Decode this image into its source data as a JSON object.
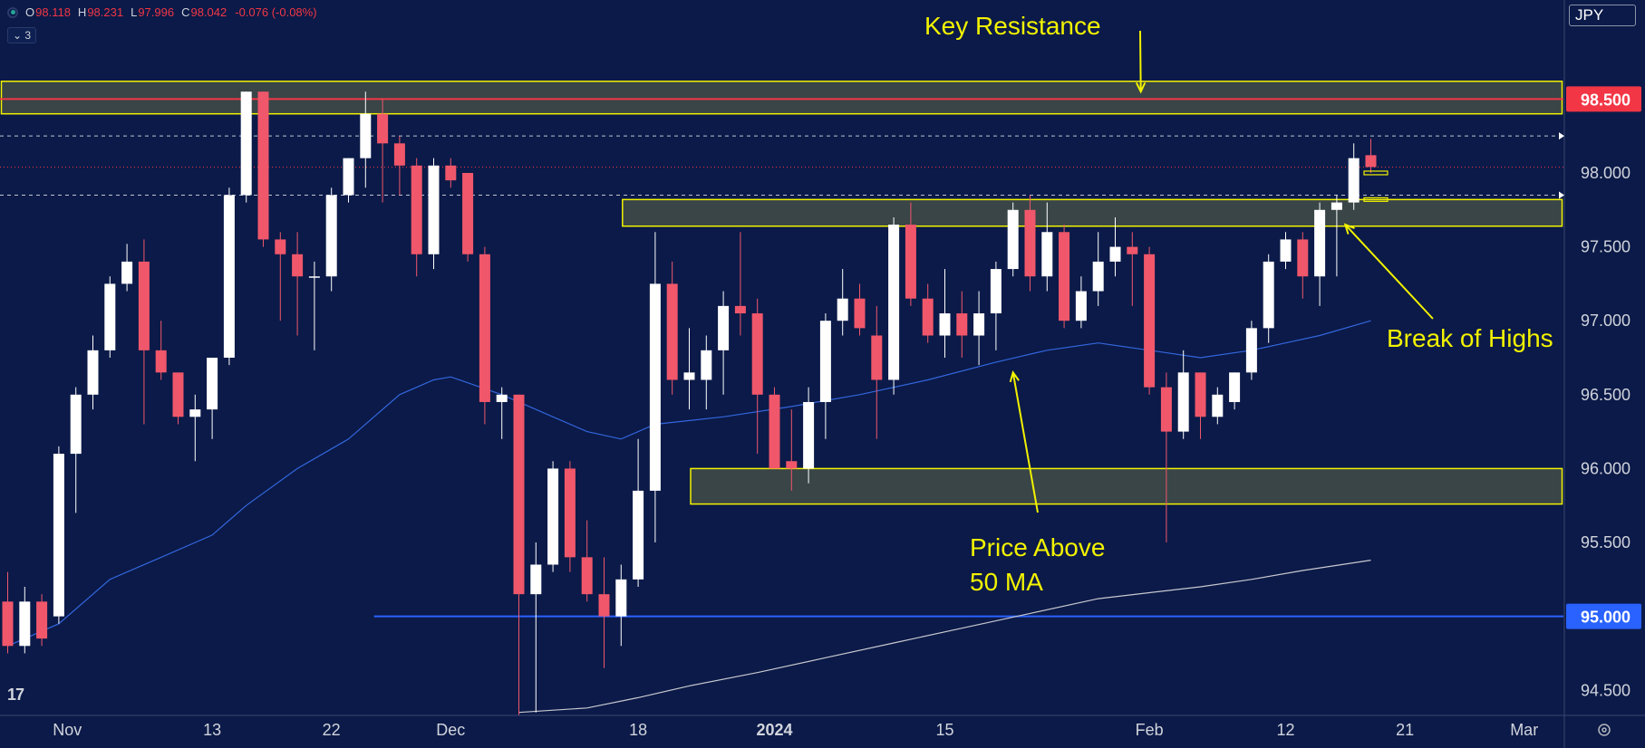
{
  "header": {
    "ohlc": [
      {
        "key": "O",
        "value": "98.118"
      },
      {
        "key": "H",
        "value": "98.231"
      },
      {
        "key": "L",
        "value": "97.996"
      },
      {
        "key": "C",
        "value": "98.042"
      }
    ],
    "change": "-0.076 (-0.08%)",
    "indicator_count": "3"
  },
  "currency_label": "JPY",
  "logo_text": "17",
  "colors": {
    "background": "#0b1a48",
    "bull_candle": "#ffffff",
    "bear_candle": "#f0576b",
    "zone_fill": "#3e4a47",
    "zone_border": "#f2f200",
    "annotation": "#f2f200",
    "ma50": "#3366dd",
    "ma200": "#c8c8d0",
    "support_line": "#2962ff",
    "resistance_line": "#f23645"
  },
  "chart_data": {
    "type": "candlestick",
    "y_axis": {
      "ylim": [
        94.33,
        99.17
      ],
      "ticks": [
        "94.500",
        "95.000",
        "95.500",
        "96.000",
        "96.500",
        "97.000",
        "97.500",
        "98.000",
        "98.500"
      ],
      "tick_values": [
        94.5,
        95.0,
        95.5,
        96.0,
        96.5,
        97.0,
        97.5,
        98.0,
        98.5
      ],
      "highlighted_labels": [
        {
          "text": "98.500",
          "value": 98.5,
          "color": "#f23645"
        },
        {
          "text": "95.000",
          "value": 95.0,
          "color": "#2962ff"
        }
      ]
    },
    "x_axis": {
      "ticks": [
        {
          "label": "Nov",
          "index": 3.5
        },
        {
          "label": "13",
          "index": 12
        },
        {
          "label": "22",
          "index": 19
        },
        {
          "label": "Dec",
          "index": 26
        },
        {
          "label": "18",
          "index": 37
        },
        {
          "label": "2024",
          "index": 45
        },
        {
          "label": "15",
          "index": 55
        },
        {
          "label": "Feb",
          "index": 67
        },
        {
          "label": "12",
          "index": 75
        },
        {
          "label": "21",
          "index": 82
        },
        {
          "label": "Mar",
          "index": 89
        }
      ]
    },
    "candles": [
      {
        "o": 95.1,
        "h": 95.3,
        "l": 94.75,
        "c": 94.8
      },
      {
        "o": 94.8,
        "h": 95.2,
        "l": 94.75,
        "c": 95.1
      },
      {
        "o": 95.1,
        "h": 95.15,
        "l": 94.8,
        "c": 94.85
      },
      {
        "o": 95.0,
        "h": 96.15,
        "l": 94.95,
        "c": 96.1
      },
      {
        "o": 96.1,
        "h": 96.55,
        "l": 95.7,
        "c": 96.5
      },
      {
        "o": 96.5,
        "h": 96.9,
        "l": 96.4,
        "c": 96.8
      },
      {
        "o": 96.8,
        "h": 97.3,
        "l": 96.75,
        "c": 97.25
      },
      {
        "o": 97.25,
        "h": 97.52,
        "l": 97.2,
        "c": 97.4
      },
      {
        "o": 97.4,
        "h": 97.55,
        "l": 96.3,
        "c": 96.8
      },
      {
        "o": 96.8,
        "h": 97.0,
        "l": 96.6,
        "c": 96.65
      },
      {
        "o": 96.65,
        "h": 96.65,
        "l": 96.3,
        "c": 96.35
      },
      {
        "o": 96.35,
        "h": 96.5,
        "l": 96.05,
        "c": 96.4
      },
      {
        "o": 96.4,
        "h": 96.75,
        "l": 96.2,
        "c": 96.75
      },
      {
        "o": 96.75,
        "h": 97.9,
        "l": 96.7,
        "c": 97.85
      },
      {
        "o": 97.85,
        "h": 98.55,
        "l": 97.8,
        "c": 98.55
      },
      {
        "o": 98.55,
        "h": 98.55,
        "l": 97.5,
        "c": 97.55
      },
      {
        "o": 97.55,
        "h": 97.6,
        "l": 97.0,
        "c": 97.45
      },
      {
        "o": 97.45,
        "h": 97.6,
        "l": 96.9,
        "c": 97.3
      },
      {
        "o": 97.3,
        "h": 97.4,
        "l": 96.8,
        "c": 97.3
      },
      {
        "o": 97.3,
        "h": 97.9,
        "l": 97.2,
        "c": 97.85
      },
      {
        "o": 97.85,
        "h": 98.1,
        "l": 97.8,
        "c": 98.1
      },
      {
        "o": 98.1,
        "h": 98.55,
        "l": 97.9,
        "c": 98.4
      },
      {
        "o": 98.4,
        "h": 98.5,
        "l": 97.8,
        "c": 98.2
      },
      {
        "o": 98.2,
        "h": 98.25,
        "l": 97.85,
        "c": 98.05
      },
      {
        "o": 98.05,
        "h": 98.1,
        "l": 97.3,
        "c": 97.45
      },
      {
        "o": 97.45,
        "h": 98.1,
        "l": 97.35,
        "c": 98.05
      },
      {
        "o": 98.05,
        "h": 98.1,
        "l": 97.9,
        "c": 97.95
      },
      {
        "o": 98.0,
        "h": 98.0,
        "l": 97.4,
        "c": 97.45
      },
      {
        "o": 97.45,
        "h": 97.5,
        "l": 96.3,
        "c": 96.45
      },
      {
        "o": 96.45,
        "h": 96.55,
        "l": 96.2,
        "c": 96.5
      },
      {
        "o": 96.5,
        "h": 96.5,
        "l": 94.3,
        "c": 95.15
      },
      {
        "o": 95.15,
        "h": 95.5,
        "l": 94.35,
        "c": 95.35
      },
      {
        "o": 95.35,
        "h": 96.05,
        "l": 95.3,
        "c": 96.0
      },
      {
        "o": 96.0,
        "h": 96.05,
        "l": 95.3,
        "c": 95.4
      },
      {
        "o": 95.4,
        "h": 95.65,
        "l": 95.1,
        "c": 95.15
      },
      {
        "o": 95.15,
        "h": 95.4,
        "l": 94.65,
        "c": 95.0
      },
      {
        "o": 95.0,
        "h": 95.35,
        "l": 94.8,
        "c": 95.25
      },
      {
        "o": 95.25,
        "h": 96.2,
        "l": 95.2,
        "c": 95.85
      },
      {
        "o": 95.85,
        "h": 97.6,
        "l": 95.5,
        "c": 97.25
      },
      {
        "o": 97.25,
        "h": 97.4,
        "l": 96.5,
        "c": 96.6
      },
      {
        "o": 96.6,
        "h": 96.95,
        "l": 96.4,
        "c": 96.65
      },
      {
        "o": 96.6,
        "h": 96.9,
        "l": 96.4,
        "c": 96.8
      },
      {
        "o": 96.8,
        "h": 97.2,
        "l": 96.5,
        "c": 97.1
      },
      {
        "o": 97.1,
        "h": 97.6,
        "l": 96.9,
        "c": 97.05
      },
      {
        "o": 97.05,
        "h": 97.15,
        "l": 96.1,
        "c": 96.5
      },
      {
        "o": 96.5,
        "h": 96.55,
        "l": 96.0,
        "c": 96.0
      },
      {
        "o": 96.05,
        "h": 96.4,
        "l": 95.85,
        "c": 96.0
      },
      {
        "o": 96.0,
        "h": 96.55,
        "l": 95.9,
        "c": 96.45
      },
      {
        "o": 96.45,
        "h": 97.05,
        "l": 96.2,
        "c": 97.0
      },
      {
        "o": 97.0,
        "h": 97.35,
        "l": 96.9,
        "c": 97.15
      },
      {
        "o": 97.15,
        "h": 97.25,
        "l": 96.9,
        "c": 96.95
      },
      {
        "o": 96.9,
        "h": 97.1,
        "l": 96.2,
        "c": 96.6
      },
      {
        "o": 96.6,
        "h": 97.7,
        "l": 96.5,
        "c": 97.65
      },
      {
        "o": 97.65,
        "h": 97.8,
        "l": 97.1,
        "c": 97.15
      },
      {
        "o": 97.15,
        "h": 97.25,
        "l": 96.85,
        "c": 96.9
      },
      {
        "o": 96.9,
        "h": 97.35,
        "l": 96.75,
        "c": 97.05
      },
      {
        "o": 97.05,
        "h": 97.2,
        "l": 96.75,
        "c": 96.9
      },
      {
        "o": 96.9,
        "h": 97.2,
        "l": 96.7,
        "c": 97.05
      },
      {
        "o": 97.05,
        "h": 97.4,
        "l": 96.8,
        "c": 97.35
      },
      {
        "o": 97.35,
        "h": 97.8,
        "l": 97.3,
        "c": 97.75
      },
      {
        "o": 97.75,
        "h": 97.85,
        "l": 97.2,
        "c": 97.3
      },
      {
        "o": 97.3,
        "h": 97.8,
        "l": 97.2,
        "c": 97.6
      },
      {
        "o": 97.6,
        "h": 97.65,
        "l": 96.95,
        "c": 97.0
      },
      {
        "o": 97.0,
        "h": 97.3,
        "l": 96.95,
        "c": 97.2
      },
      {
        "o": 97.2,
        "h": 97.6,
        "l": 97.1,
        "c": 97.4
      },
      {
        "o": 97.4,
        "h": 97.7,
        "l": 97.3,
        "c": 97.5
      },
      {
        "o": 97.5,
        "h": 97.6,
        "l": 97.1,
        "c": 97.45
      },
      {
        "o": 97.45,
        "h": 97.5,
        "l": 96.5,
        "c": 96.55
      },
      {
        "o": 96.55,
        "h": 96.65,
        "l": 95.5,
        "c": 96.25
      },
      {
        "o": 96.25,
        "h": 96.8,
        "l": 96.2,
        "c": 96.65
      },
      {
        "o": 96.65,
        "h": 96.65,
        "l": 96.2,
        "c": 96.35
      },
      {
        "o": 96.35,
        "h": 96.55,
        "l": 96.3,
        "c": 96.5
      },
      {
        "o": 96.45,
        "h": 96.65,
        "l": 96.4,
        "c": 96.65
      },
      {
        "o": 96.65,
        "h": 97.0,
        "l": 96.6,
        "c": 96.95
      },
      {
        "o": 96.95,
        "h": 97.45,
        "l": 96.85,
        "c": 97.4
      },
      {
        "o": 97.4,
        "h": 97.6,
        "l": 97.35,
        "c": 97.55
      },
      {
        "o": 97.55,
        "h": 97.6,
        "l": 97.15,
        "c": 97.3
      },
      {
        "o": 97.3,
        "h": 97.8,
        "l": 97.1,
        "c": 97.75
      },
      {
        "o": 97.75,
        "h": 97.85,
        "l": 97.3,
        "c": 97.8
      },
      {
        "o": 97.8,
        "h": 98.2,
        "l": 97.75,
        "c": 98.1
      },
      {
        "o": 98.12,
        "h": 98.23,
        "l": 98.0,
        "c": 98.04
      }
    ],
    "moving_averages": [
      {
        "period": "50 MA",
        "color": "#3366dd",
        "points": [
          [
            0,
            94.8
          ],
          [
            3,
            94.95
          ],
          [
            6,
            95.25
          ],
          [
            9,
            95.4
          ],
          [
            12,
            95.55
          ],
          [
            14,
            95.75
          ],
          [
            17,
            96.0
          ],
          [
            20,
            96.2
          ],
          [
            23,
            96.5
          ],
          [
            25,
            96.6
          ],
          [
            26,
            96.62
          ],
          [
            29,
            96.5
          ],
          [
            32,
            96.35
          ],
          [
            34,
            96.25
          ],
          [
            36,
            96.2
          ],
          [
            38,
            96.3
          ],
          [
            42,
            96.35
          ],
          [
            46,
            96.42
          ],
          [
            50,
            96.5
          ],
          [
            54,
            96.6
          ],
          [
            58,
            96.72
          ],
          [
            61,
            96.8
          ],
          [
            64,
            96.85
          ],
          [
            67,
            96.8
          ],
          [
            70,
            96.75
          ],
          [
            73,
            96.8
          ],
          [
            75,
            96.85
          ],
          [
            77,
            96.9
          ],
          [
            80,
            97.0
          ]
        ]
      },
      {
        "period": "200 MA",
        "color": "#c8c8d0",
        "points": [
          [
            30,
            94.35
          ],
          [
            34,
            94.38
          ],
          [
            37,
            94.45
          ],
          [
            40,
            94.53
          ],
          [
            44,
            94.62
          ],
          [
            48,
            94.72
          ],
          [
            52,
            94.82
          ],
          [
            56,
            94.92
          ],
          [
            60,
            95.02
          ],
          [
            64,
            95.12
          ],
          [
            67,
            95.16
          ],
          [
            70,
            95.2
          ],
          [
            73,
            95.25
          ],
          [
            76,
            95.31
          ],
          [
            80,
            95.38
          ]
        ]
      }
    ],
    "zones": [
      {
        "from_index": -2,
        "to_index": 92,
        "top": 98.62,
        "bottom": 98.4,
        "label": "Key Resistance"
      },
      {
        "from_index": 36,
        "to_index": 92,
        "top": 97.82,
        "bottom": 97.64,
        "label": "Break of Highs"
      },
      {
        "from_index": 40,
        "to_index": 92,
        "top": 96.0,
        "bottom": 95.76,
        "label": ""
      }
    ],
    "horizontal_lines": [
      {
        "value": 98.5,
        "color": "#f23645",
        "style": "solid",
        "from_index": -2
      },
      {
        "value": 95.0,
        "color": "#2962ff",
        "style": "solid",
        "from_index": 21.5
      },
      {
        "value": 98.25,
        "color": "#ffffff",
        "style": "dashed",
        "from_index": -2
      },
      {
        "value": 97.85,
        "color": "#ffffff",
        "style": "dashed",
        "from_index": -2
      },
      {
        "value": 98.04,
        "color": "#f23645",
        "style": "dotted",
        "from_index": -2
      }
    ],
    "annotations": [
      {
        "lines": [
          "Key Resistance"
        ],
        "arrow_to": {
          "index": 66.5,
          "value": 98.55
        }
      },
      {
        "lines": [
          "Break of Highs"
        ],
        "arrow_to": {
          "index": 78.5,
          "value": 97.65
        }
      },
      {
        "lines": [
          "Price Above",
          "50 MA"
        ],
        "arrow_to": {
          "index": 59,
          "value": 96.65
        }
      }
    ]
  }
}
